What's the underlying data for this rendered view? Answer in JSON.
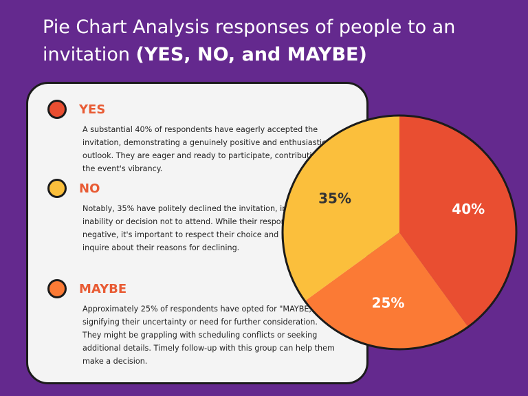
{
  "header": {
    "title_normal": "Pie Chart Analysis responses of people to an invitation ",
    "title_bold": "(YES, NO, and MAYBE)"
  },
  "items": [
    {
      "title": "YES",
      "color": "#e94e31",
      "text": "A substantial 40% of respondents have eagerly accepted the invitation, demonstrating a genuinely positive and enthusiastic outlook. They are eager and ready to participate, contributing to the event's vibrancy."
    },
    {
      "title": "NO",
      "color": "#fbbf3c",
      "text": "Notably, 35% have politely declined the invitation, indicating their inability or decision not to attend. While their response is negative, it's important to respect their choice and possibly inquire about their reasons for declining."
    },
    {
      "title": "MAYBE",
      "color": "#fb7a35",
      "text": "Approximately 25% of respondents have opted for \"MAYBE,\" signifying their uncertainty or need for further consideration. They might be grappling with scheduling conflicts or seeking additional details. Timely follow-up with this group can help them make a decision."
    }
  ],
  "chart_data": {
    "type": "pie",
    "categories": [
      "YES",
      "MAYBE",
      "NO"
    ],
    "values": [
      40,
      25,
      35
    ],
    "labels": [
      "40%",
      "25%",
      "35%"
    ],
    "colors": [
      "#e94e31",
      "#fb7a35",
      "#fbbf3c"
    ],
    "label_colors": [
      "#ffffff",
      "#ffffff",
      "#333333"
    ]
  }
}
